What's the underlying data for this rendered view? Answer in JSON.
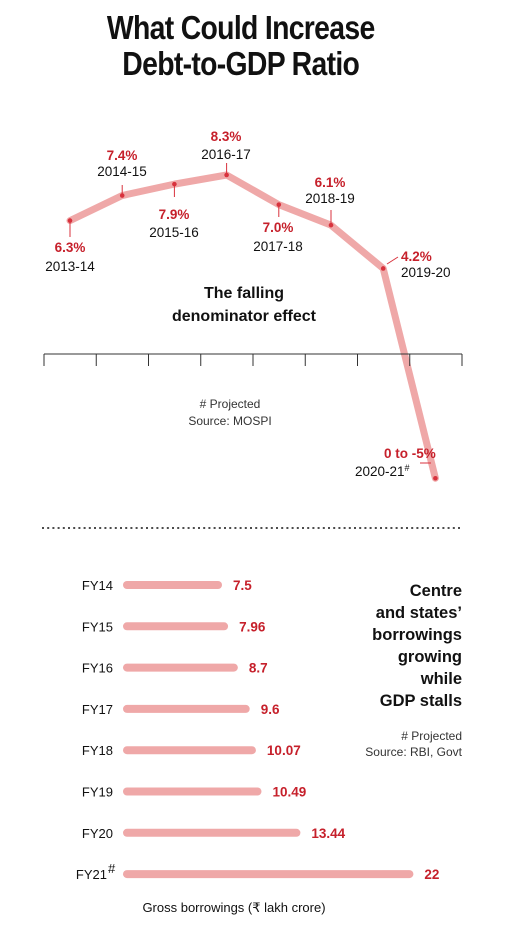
{
  "title_lines": [
    "What Could Increase",
    "Debt-to-GDP Ratio"
  ],
  "colors": {
    "line": "#efa8a8",
    "bar": "#efa8a8",
    "value": "#c6202b",
    "marker": "#d8323d",
    "axis": "#333333"
  },
  "chart_data": [
    {
      "type": "line",
      "annotation": [
        "The falling",
        "denominator effect"
      ],
      "notes": [
        "# Projected",
        "Source: MOSPI"
      ],
      "points": [
        {
          "x": "2013-14",
          "y": 6.3,
          "label": "6.3%"
        },
        {
          "x": "2014-15",
          "y": 7.4,
          "label": "7.4%"
        },
        {
          "x": "2015-16",
          "y": 7.9,
          "label": "7.9%"
        },
        {
          "x": "2016-17",
          "y": 8.3,
          "label": "8.3%"
        },
        {
          "x": "2017-18",
          "y": 7.0,
          "label": "7.0%"
        },
        {
          "x": "2018-19",
          "y": 6.1,
          "label": "6.1%"
        },
        {
          "x": "2019-20",
          "y": 4.2,
          "label": "4.2%"
        },
        {
          "x": "2020-21",
          "x_suffix": "#",
          "y": -5,
          "y_range": [
            -5,
            0
          ],
          "label": "0 to -5%"
        }
      ],
      "grid": false
    },
    {
      "type": "bar",
      "orientation": "horizontal",
      "categories": [
        "FY14",
        "FY15",
        "FY16",
        "FY17",
        "FY18",
        "FY19",
        "FY20",
        "FY21"
      ],
      "category_suffix": [
        "",
        "",
        "",
        "",
        "",
        "",
        "",
        "#"
      ],
      "values": [
        7.5,
        7.96,
        8.7,
        9.6,
        10.07,
        10.49,
        13.44,
        22
      ],
      "value_labels": [
        "7.5",
        "7.96",
        "8.7",
        "9.6",
        "10.07",
        "10.49",
        "13.44",
        "22"
      ],
      "xlabel": "Gross borrowings (₹ lakh crore)",
      "side_title": [
        "Centre",
        "and states’",
        "borrowings",
        "growing",
        "while",
        "GDP stalls"
      ],
      "notes": [
        "# Projected",
        "Source: RBI, Govt"
      ],
      "grid": false
    }
  ]
}
